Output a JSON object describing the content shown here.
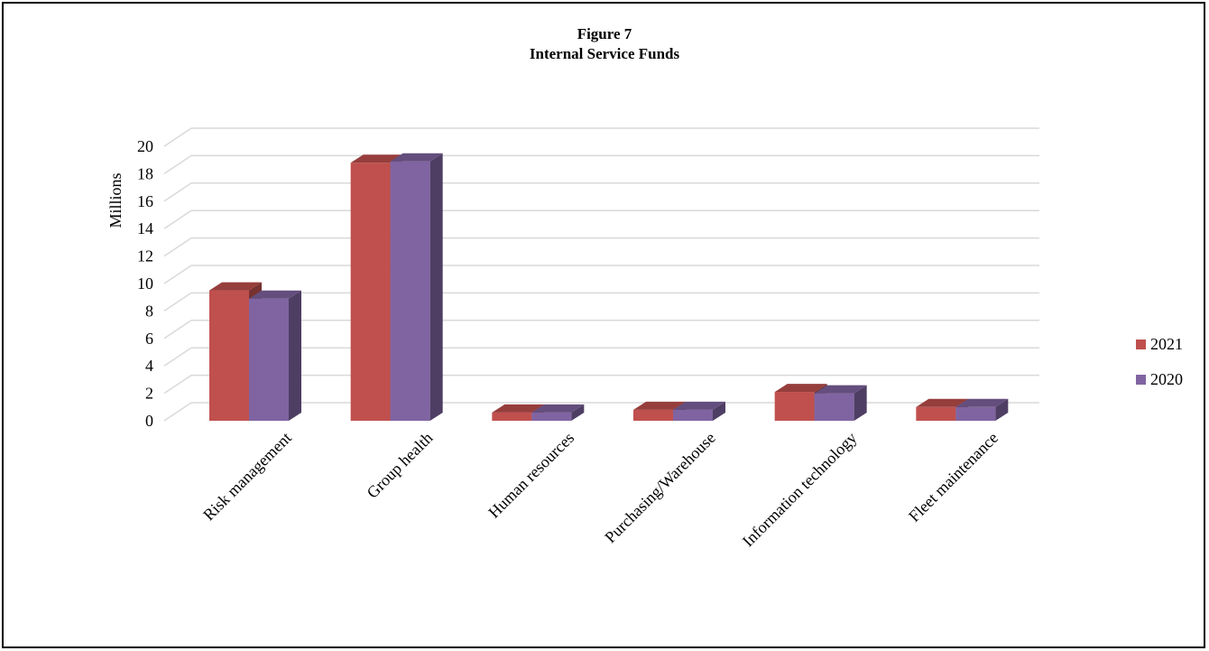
{
  "chart_data": {
    "type": "bar",
    "title": "Figure 7",
    "subtitle": "Internal  Service Funds",
    "ylabel": "Millions",
    "xlabel": "",
    "ylim": [
      0,
      20
    ],
    "yticks": [
      0,
      2,
      4,
      6,
      8,
      10,
      12,
      14,
      16,
      18,
      20
    ],
    "grid": true,
    "legend": "right",
    "categories": [
      "Risk management",
      "Group health",
      "Human resources",
      "Purchasing/Warehouse",
      "Information technology",
      "Fleet maintenance"
    ],
    "series": [
      {
        "name": "2021",
        "color": "#c0504d",
        "values": [
          9.5,
          18.8,
          0.6,
          0.8,
          2.1,
          1.0
        ]
      },
      {
        "name": "2020",
        "color": "#8064a2",
        "values": [
          8.9,
          18.9,
          0.6,
          0.8,
          2.0,
          1.0
        ]
      }
    ]
  }
}
